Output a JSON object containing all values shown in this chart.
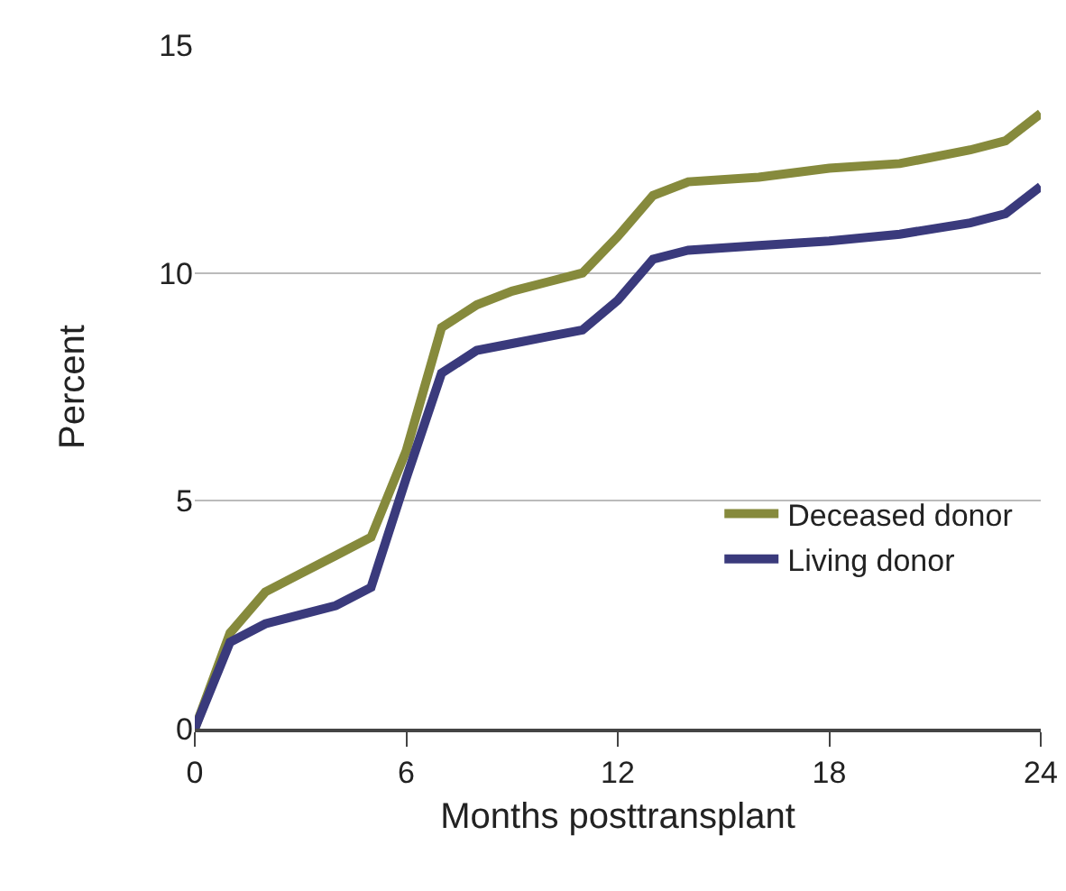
{
  "chart_data": {
    "type": "line",
    "xlabel": "Months posttransplant",
    "ylabel": "Percent",
    "x": [
      0,
      1,
      2,
      3,
      4,
      5,
      6,
      7,
      8,
      9,
      10,
      11,
      12,
      13,
      14,
      16,
      18,
      20,
      22,
      23,
      24
    ],
    "series": [
      {
        "name": "Deceased donor",
        "color": "#868a3c",
        "values": [
          0,
          2.1,
          3.0,
          3.4,
          3.8,
          4.2,
          6.1,
          8.8,
          9.3,
          9.6,
          9.8,
          10.0,
          10.8,
          11.7,
          12.0,
          12.1,
          12.3,
          12.4,
          12.7,
          12.9,
          13.5
        ]
      },
      {
        "name": "Living donor",
        "color": "#3a3a7c",
        "values": [
          0,
          1.9,
          2.3,
          2.5,
          2.7,
          3.1,
          5.5,
          7.8,
          8.3,
          8.45,
          8.6,
          8.75,
          9.4,
          10.3,
          10.5,
          10.6,
          10.7,
          10.85,
          11.1,
          11.3,
          11.9
        ]
      }
    ],
    "xlim": [
      0,
      24
    ],
    "xticks": [
      0,
      6,
      12,
      18,
      24
    ],
    "ylim": [
      0,
      15
    ],
    "yticks": [
      0,
      5,
      10,
      15
    ],
    "grid": "y",
    "legend": "bottom right",
    "marker": "none",
    "line_style": "solid"
  }
}
